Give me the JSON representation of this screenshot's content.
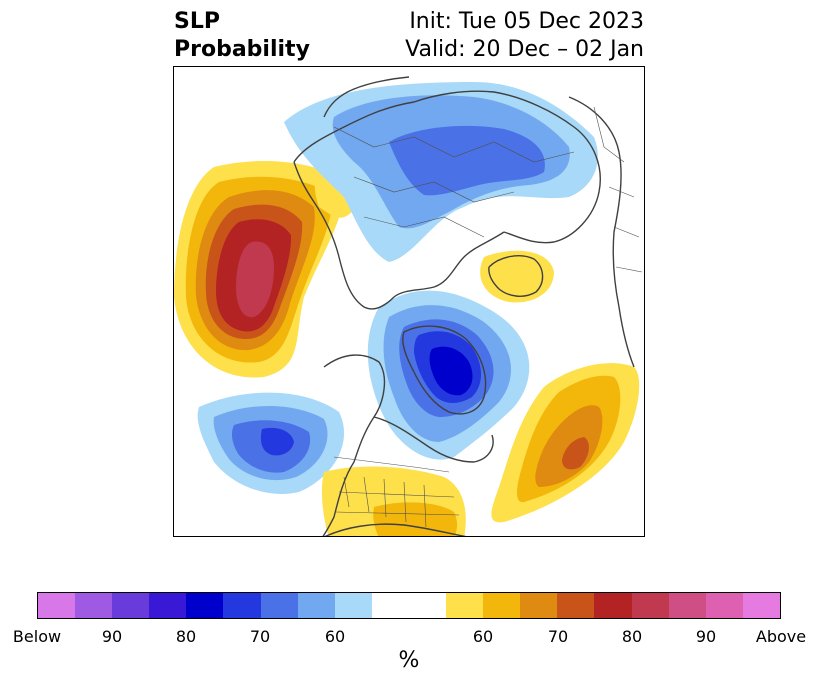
{
  "title": {
    "left_line1": "SLP",
    "left_line2": "Probability",
    "right_line1": "Init: Tue 05 Dec 2023",
    "right_line2": "Valid: 20 Dec – 02 Jan"
  },
  "colorbar": {
    "unit": "%",
    "segments": [
      {
        "color": "#d877e8",
        "category": "below"
      },
      {
        "color": "#9e5ae2",
        "category": "below"
      },
      {
        "color": "#6a3bdb",
        "category": "below"
      },
      {
        "color": "#3a19d6",
        "category": "below"
      },
      {
        "color": "#0000cc",
        "category": "below"
      },
      {
        "color": "#2338de",
        "category": "below"
      },
      {
        "color": "#4a72e6",
        "category": "below"
      },
      {
        "color": "#72a8f0",
        "category": "below"
      },
      {
        "color": "#a8d9f8",
        "category": "below"
      },
      {
        "color": "#ffffff",
        "category": "neutral"
      },
      {
        "color": "#fde04a",
        "category": "above"
      },
      {
        "color": "#f3b70b",
        "category": "above"
      },
      {
        "color": "#df8a10",
        "category": "above"
      },
      {
        "color": "#c9541a",
        "category": "above"
      },
      {
        "color": "#b32323",
        "category": "above"
      },
      {
        "color": "#c0394f",
        "category": "above"
      },
      {
        "color": "#cf4f84",
        "category": "above"
      },
      {
        "color": "#dd60b1",
        "category": "above"
      },
      {
        "color": "#e57be0",
        "category": "above"
      }
    ],
    "tick_labels": {
      "below": "Below",
      "b90": "90",
      "b80": "80",
      "b70": "70",
      "b60": "60",
      "a60": "60",
      "a70": "70",
      "a80": "80",
      "a90": "90",
      "above": "Above"
    }
  }
}
